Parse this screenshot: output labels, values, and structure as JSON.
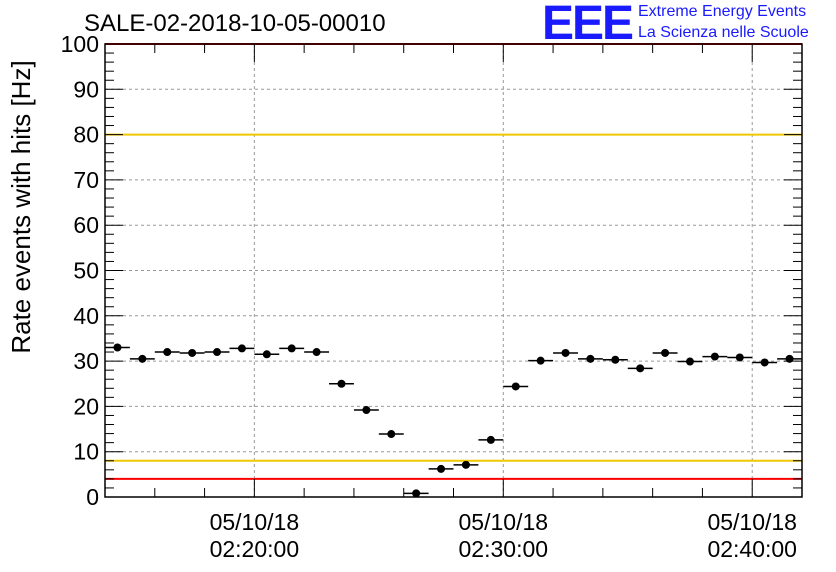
{
  "title": "SALE-02-2018-10-05-00010",
  "logo": {
    "mark": "EEE",
    "line1": "Extreme Energy Events",
    "line2": "La Scienza nelle Scuole"
  },
  "colors": {
    "limit_red": "#ff0000",
    "limit_yellow": "#f0c800",
    "grid": "#999999",
    "marker": "#000000"
  },
  "chart_data": {
    "type": "scatter",
    "title": "SALE-02-2018-10-05-00010",
    "xlabel": "",
    "ylabel": "Rate events with hits [Hz]",
    "ylim": [
      0,
      100
    ],
    "xlim": [
      "2018-10-05 02:14:00",
      "2018-10-05 02:42:00"
    ],
    "y_ticks": [
      0,
      10,
      20,
      30,
      40,
      50,
      60,
      70,
      80,
      90,
      100
    ],
    "x_ticks": [
      {
        "time": "2018-10-05 02:20:00",
        "date_label": "05/10/18",
        "time_label": "02:20:00"
      },
      {
        "time": "2018-10-05 02:30:00",
        "date_label": "05/10/18",
        "time_label": "02:30:00"
      },
      {
        "time": "2018-10-05 02:40:00",
        "date_label": "05/10/18",
        "time_label": "02:40:00"
      }
    ],
    "grid": true,
    "reference_lines": [
      {
        "value": 100,
        "color": "red"
      },
      {
        "value": 80,
        "color": "yellow"
      },
      {
        "value": 8,
        "color": "yellow"
      },
      {
        "value": 4,
        "color": "red"
      }
    ],
    "bin_width_s": 60,
    "points": [
      {
        "x": "2018-10-05 02:14:00",
        "y": 33.0
      },
      {
        "x": "2018-10-05 02:15:00",
        "y": 30.5
      },
      {
        "x": "2018-10-05 02:16:00",
        "y": 32.0
      },
      {
        "x": "2018-10-05 02:17:00",
        "y": 31.8
      },
      {
        "x": "2018-10-05 02:18:00",
        "y": 32.0
      },
      {
        "x": "2018-10-05 02:19:00",
        "y": 32.8
      },
      {
        "x": "2018-10-05 02:20:00",
        "y": 31.5
      },
      {
        "x": "2018-10-05 02:21:00",
        "y": 32.8
      },
      {
        "x": "2018-10-05 02:22:00",
        "y": 32.0
      },
      {
        "x": "2018-10-05 02:23:00",
        "y": 25.0
      },
      {
        "x": "2018-10-05 02:24:00",
        "y": 19.2
      },
      {
        "x": "2018-10-05 02:25:00",
        "y": 13.9
      },
      {
        "x": "2018-10-05 02:26:00",
        "y": 0.8
      },
      {
        "x": "2018-10-05 02:27:00",
        "y": 6.2
      },
      {
        "x": "2018-10-05 02:28:00",
        "y": 7.1
      },
      {
        "x": "2018-10-05 02:29:00",
        "y": 12.6
      },
      {
        "x": "2018-10-05 02:30:00",
        "y": 24.4
      },
      {
        "x": "2018-10-05 02:31:00",
        "y": 30.1
      },
      {
        "x": "2018-10-05 02:32:00",
        "y": 31.8
      },
      {
        "x": "2018-10-05 02:33:00",
        "y": 30.5
      },
      {
        "x": "2018-10-05 02:34:00",
        "y": 30.3
      },
      {
        "x": "2018-10-05 02:35:00",
        "y": 28.4
      },
      {
        "x": "2018-10-05 02:36:00",
        "y": 31.8
      },
      {
        "x": "2018-10-05 02:37:00",
        "y": 29.9
      },
      {
        "x": "2018-10-05 02:38:00",
        "y": 31.0
      },
      {
        "x": "2018-10-05 02:39:00",
        "y": 30.8
      },
      {
        "x": "2018-10-05 02:40:00",
        "y": 29.7
      },
      {
        "x": "2018-10-05 02:41:00",
        "y": 30.5
      }
    ]
  }
}
